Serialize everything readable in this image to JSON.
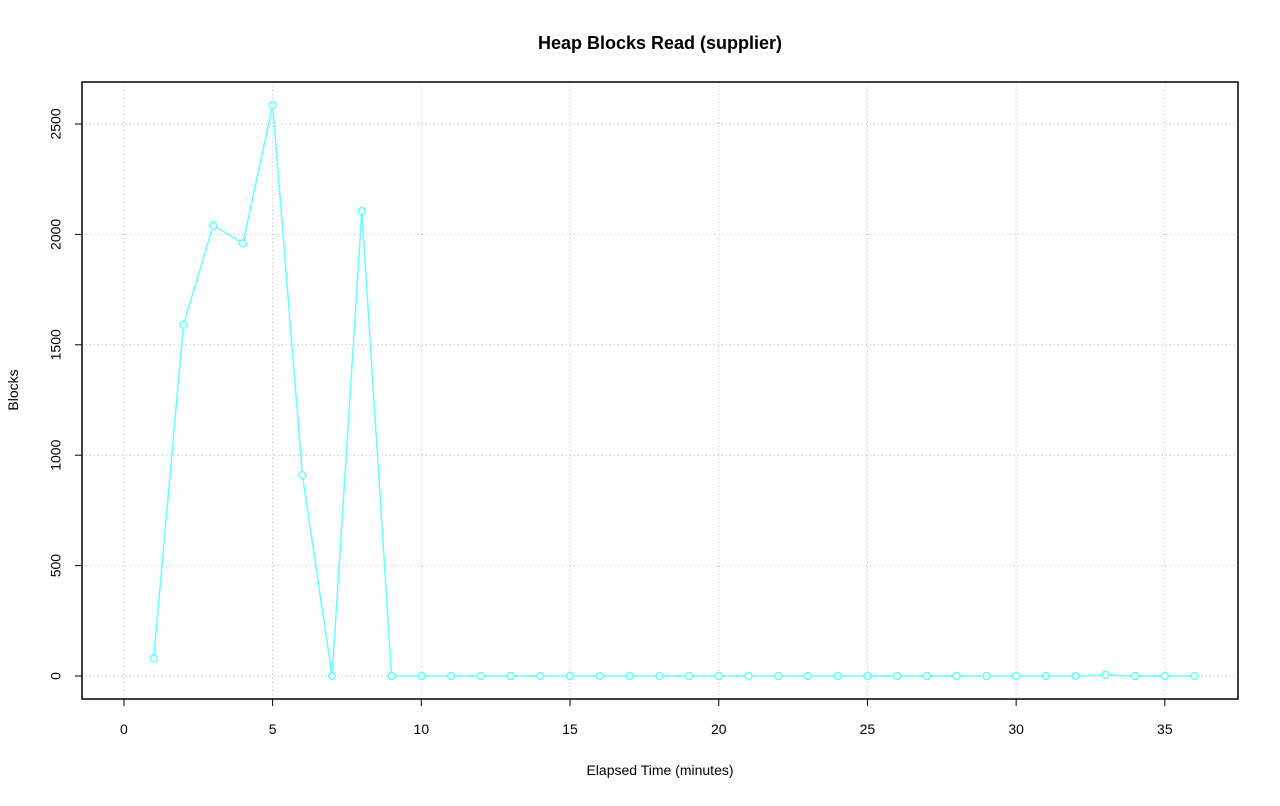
{
  "chart_data": {
    "type": "line",
    "title": "Heap Blocks Read (supplier)",
    "xlabel": "Elapsed Time (minutes)",
    "ylabel": "Blocks",
    "x": [
      1,
      2,
      3,
      4,
      5,
      6,
      7,
      8,
      9,
      10,
      11,
      12,
      13,
      14,
      15,
      16,
      17,
      18,
      19,
      20,
      21,
      22,
      23,
      24,
      25,
      26,
      27,
      28,
      29,
      30,
      31,
      32,
      33,
      34,
      35,
      36
    ],
    "series": [
      {
        "color": "#66ffff",
        "values": [
          80,
          1590,
          2040,
          1960,
          2585,
          910,
          0,
          2105,
          0,
          0,
          0,
          0,
          0,
          0,
          0,
          0,
          0,
          0,
          0,
          0,
          0,
          0,
          0,
          0,
          0,
          0,
          0,
          0,
          0,
          0,
          0,
          0,
          5,
          0,
          0,
          0
        ]
      }
    ],
    "xlim": [
      -1.41,
      37.46
    ],
    "ylim": [
      -104,
      2690
    ],
    "xticks": [
      0,
      5,
      10,
      15,
      20,
      25,
      30,
      35
    ],
    "yticks": [
      0,
      500,
      1000,
      1500,
      2000,
      2500
    ],
    "grid": true,
    "markers": true
  }
}
